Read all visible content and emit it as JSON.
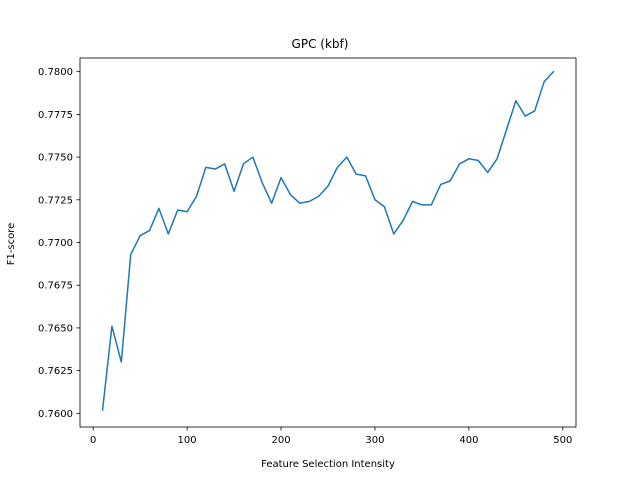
{
  "chart_data": {
    "type": "line",
    "title": "GPC (kbf)",
    "xlabel": "Feature Selection Intensity",
    "ylabel": "F1-score",
    "xlim": [
      -14,
      514
    ],
    "ylim": [
      0.7592,
      0.7808
    ],
    "xticks": [
      0,
      100,
      200,
      300,
      400,
      500
    ],
    "xtick_labels": [
      "0",
      "100",
      "200",
      "300",
      "400",
      "500"
    ],
    "yticks": [
      0.76,
      0.7625,
      0.765,
      0.7675,
      0.77,
      0.7725,
      0.775,
      0.7775,
      0.78
    ],
    "ytick_labels": [
      "0.7600",
      "0.7625",
      "0.7650",
      "0.7675",
      "0.7700",
      "0.7725",
      "0.7750",
      "0.7775",
      "0.7800"
    ],
    "grid": false,
    "series": [
      {
        "color": "#1f77b4",
        "x": [
          10,
          20,
          30,
          40,
          50,
          60,
          70,
          80,
          90,
          100,
          110,
          120,
          130,
          140,
          150,
          160,
          170,
          180,
          190,
          200,
          210,
          220,
          230,
          240,
          250,
          260,
          270,
          280,
          290,
          300,
          310,
          320,
          330,
          340,
          350,
          360,
          370,
          380,
          390,
          400,
          410,
          420,
          430,
          440,
          450,
          460,
          470,
          480,
          490
        ],
        "y": [
          0.7602,
          0.7651,
          0.763,
          0.7693,
          0.7704,
          0.7707,
          0.772,
          0.7705,
          0.7719,
          0.7718,
          0.7727,
          0.7744,
          0.7743,
          0.7746,
          0.773,
          0.7746,
          0.775,
          0.7735,
          0.7723,
          0.7738,
          0.7728,
          0.7723,
          0.7724,
          0.7727,
          0.7733,
          0.7744,
          0.775,
          0.774,
          0.7739,
          0.7725,
          0.7721,
          0.7705,
          0.7713,
          0.7724,
          0.7722,
          0.7722,
          0.7734,
          0.7736,
          0.7746,
          0.7749,
          0.7748,
          0.7741,
          0.7749,
          0.7766,
          0.7783,
          0.7774,
          0.7777,
          0.7794,
          0.78
        ]
      }
    ]
  }
}
